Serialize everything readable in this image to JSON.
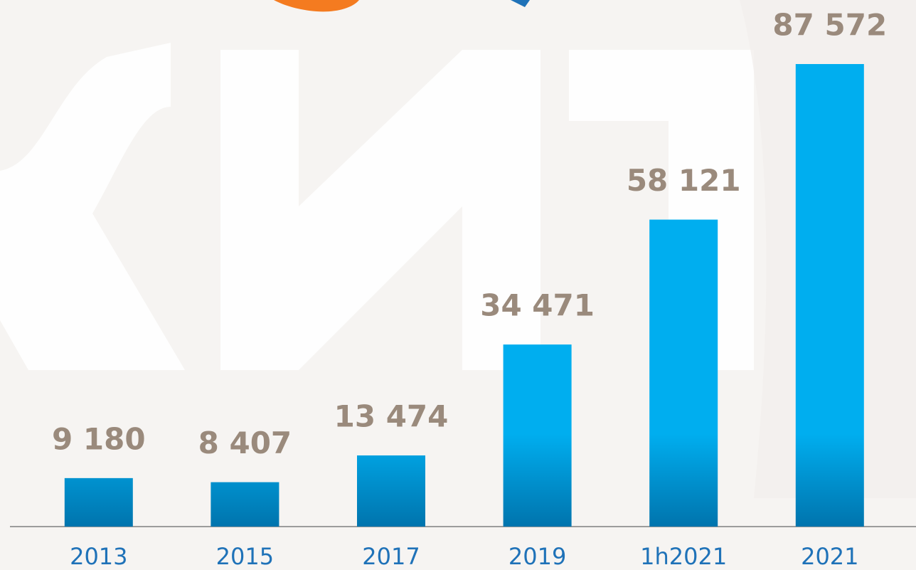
{
  "chart_data": {
    "type": "bar",
    "categories": [
      "2013",
      "2015",
      "2017",
      "2019",
      "1h2021",
      "2021"
    ],
    "values": [
      9180,
      8407,
      13474,
      34471,
      58121,
      87572
    ],
    "value_labels": [
      "9 180",
      "8 407",
      "13 474",
      "34 471",
      "58 121",
      "87 572"
    ],
    "color": "#00aeef"
  }
}
